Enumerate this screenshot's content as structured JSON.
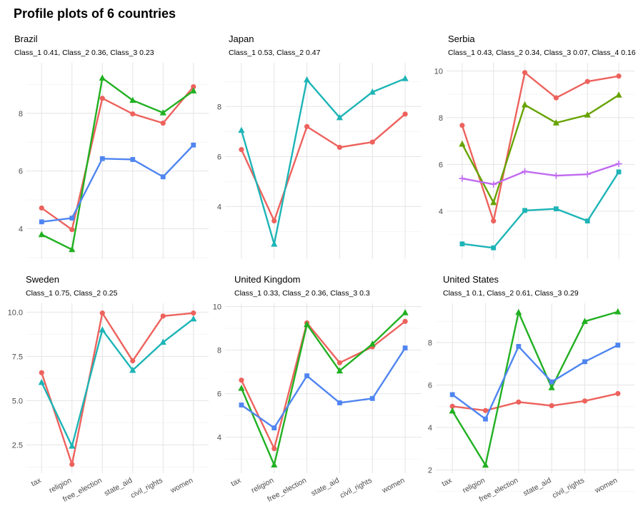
{
  "title": "Profile plots of 6 countries",
  "colors": {
    "Class_1": "#ED625D",
    "Class_2": "#21B021",
    "Class_3": "#4F85F0",
    "teal": "#1DB4B6",
    "olive": "#66A300",
    "purple": "#C06BF0"
  },
  "chart_data": [
    {
      "type": "line",
      "title": "Brazil",
      "subtitle": "Class_1 0.41, Class_2 0.36, Class_3 0.23",
      "categories": [
        "tax",
        "religion",
        "free_election",
        "state_aid",
        "civil_rights",
        "women"
      ],
      "show_x_labels": false,
      "yticks": [
        4,
        6,
        8
      ],
      "ylim": [
        2.95,
        9.75
      ],
      "series": [
        {
          "name": "Class_1",
          "color": "#ED625D",
          "marker": "circle",
          "values": [
            4.72,
            3.97,
            8.52,
            7.98,
            7.66,
            8.92
          ]
        },
        {
          "name": "Class_2",
          "color": "#21B021",
          "marker": "triangle",
          "values": [
            3.8,
            3.28,
            9.22,
            8.45,
            8.02,
            8.78
          ]
        },
        {
          "name": "Class_3",
          "color": "#4F85F0",
          "marker": "square",
          "values": [
            4.24,
            4.37,
            6.43,
            6.4,
            5.8,
            6.9
          ]
        }
      ]
    },
    {
      "type": "line",
      "title": "Japan",
      "subtitle": "Class_1 0.53, Class_2 0.47",
      "categories": [
        "tax",
        "religion",
        "free_election",
        "state_aid",
        "civil_rights",
        "women"
      ],
      "show_x_labels": false,
      "yticks": [
        4,
        6,
        8
      ],
      "ylim": [
        1.9,
        9.75
      ],
      "series": [
        {
          "name": "Class_1",
          "color": "#ED625D",
          "marker": "circle",
          "values": [
            6.28,
            3.43,
            7.2,
            6.37,
            6.58,
            7.7
          ]
        },
        {
          "name": "Class_2",
          "color": "#1DB4B6",
          "marker": "triangle",
          "values": [
            7.05,
            2.5,
            9.07,
            7.56,
            8.58,
            9.12
          ]
        }
      ]
    },
    {
      "type": "line",
      "title": "Serbia",
      "subtitle": "Class_1 0.43, Class_2 0.34, Class_3 0.07, Class_4 0.16",
      "categories": [
        "tax",
        "religion",
        "free_election",
        "state_aid",
        "civil_rights",
        "women"
      ],
      "show_x_labels": false,
      "yticks": [
        4,
        6,
        8,
        10
      ],
      "ylim": [
        1.95,
        10.35
      ],
      "series": [
        {
          "name": "Class_1",
          "color": "#ED625D",
          "marker": "circle",
          "values": [
            7.67,
            3.58,
            9.93,
            8.85,
            9.55,
            9.78
          ]
        },
        {
          "name": "Class_2",
          "color": "#66A300",
          "marker": "triangle",
          "values": [
            6.87,
            4.37,
            8.55,
            7.78,
            8.12,
            8.97
          ]
        },
        {
          "name": "Class_3",
          "color": "#1DB4B6",
          "marker": "square",
          "values": [
            2.6,
            2.43,
            4.03,
            4.1,
            3.58,
            5.68
          ]
        },
        {
          "name": "Class_4",
          "color": "#C06BF0",
          "marker": "plus",
          "values": [
            5.4,
            5.15,
            5.7,
            5.52,
            5.58,
            6.03
          ]
        }
      ]
    },
    {
      "type": "line",
      "title": "Sweden",
      "subtitle": "Class_1 0.75, Class_2 0.25",
      "categories": [
        "tax",
        "religion",
        "free_election",
        "state_aid",
        "civil_rights",
        "women"
      ],
      "show_x_labels": true,
      "yticks": [
        2.5,
        5.0,
        7.5,
        10.0
      ],
      "ylim": [
        0.9,
        10.5
      ],
      "series": [
        {
          "name": "Class_1",
          "color": "#ED625D",
          "marker": "circle",
          "values": [
            6.58,
            1.4,
            9.95,
            7.25,
            9.78,
            9.95
          ]
        },
        {
          "name": "Class_2",
          "color": "#1DB4B6",
          "marker": "triangle",
          "values": [
            6.03,
            2.43,
            9.0,
            6.72,
            8.3,
            9.62
          ]
        }
      ]
    },
    {
      "type": "line",
      "title": "United Kingdom",
      "subtitle": "Class_1 0.33, Class_2 0.36, Class_3 0.3",
      "categories": [
        "tax",
        "religion",
        "free_election",
        "state_aid",
        "civil_rights",
        "women"
      ],
      "show_x_labels": true,
      "yticks": [
        4,
        6,
        8,
        10
      ],
      "ylim": [
        2.35,
        10.15
      ],
      "series": [
        {
          "name": "Class_1",
          "color": "#ED625D",
          "marker": "circle",
          "values": [
            6.62,
            3.48,
            9.25,
            7.42,
            8.15,
            9.32
          ]
        },
        {
          "name": "Class_2",
          "color": "#21B021",
          "marker": "triangle",
          "values": [
            6.25,
            2.73,
            9.18,
            7.05,
            8.28,
            9.72
          ]
        },
        {
          "name": "Class_3",
          "color": "#4F85F0",
          "marker": "square",
          "values": [
            5.48,
            4.43,
            6.82,
            5.58,
            5.78,
            8.1
          ]
        }
      ]
    },
    {
      "type": "line",
      "title": "United States",
      "subtitle": "Class_1 0.1, Class_2 0.61, Class_3 0.29",
      "categories": [
        "tax",
        "religion",
        "free_election",
        "state_aid",
        "civil_rights",
        "women"
      ],
      "show_x_labels": true,
      "yticks": [
        2,
        4,
        6,
        8
      ],
      "ylim": [
        1.85,
        9.85
      ],
      "series": [
        {
          "name": "Class_1",
          "color": "#ED625D",
          "marker": "circle",
          "values": [
            5.0,
            4.8,
            5.2,
            5.03,
            5.25,
            5.6
          ]
        },
        {
          "name": "Class_2",
          "color": "#21B021",
          "marker": "triangle",
          "values": [
            4.78,
            2.23,
            9.42,
            5.88,
            9.0,
            9.45
          ]
        },
        {
          "name": "Class_3",
          "color": "#4F85F0",
          "marker": "square",
          "values": [
            5.55,
            4.4,
            7.82,
            6.15,
            7.1,
            7.88
          ]
        }
      ]
    }
  ]
}
